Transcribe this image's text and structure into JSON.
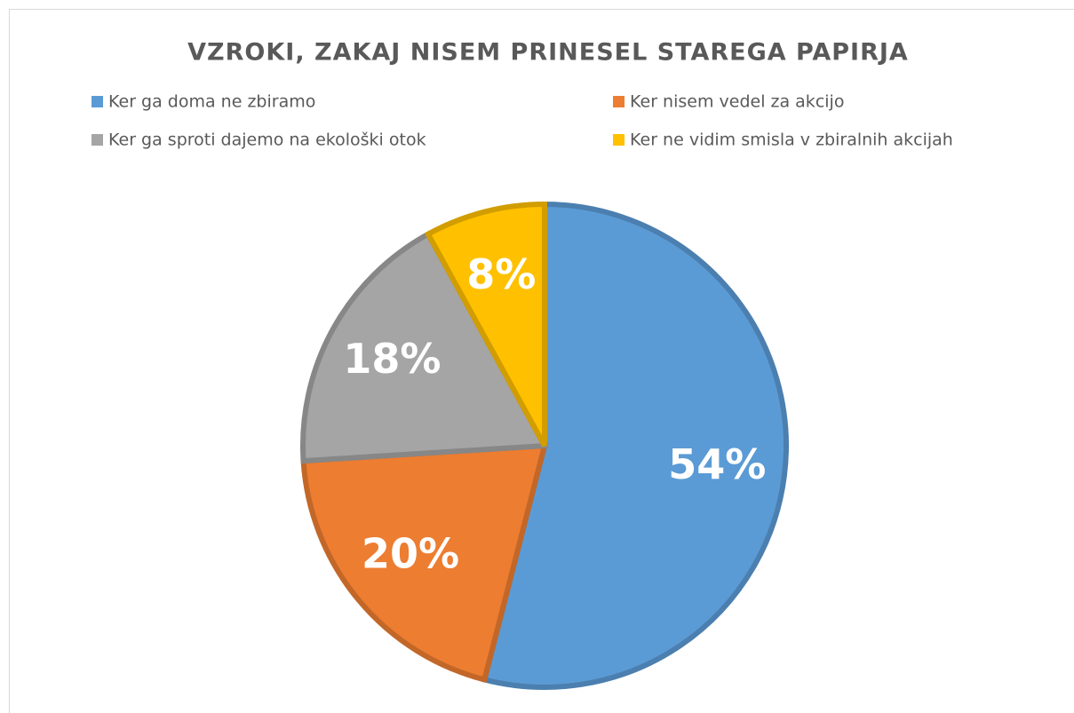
{
  "chart_data": {
    "type": "pie",
    "title": "VZROKI, ZAKAJ NISEM PRINESEL STAREGA PAPIRJA",
    "categories": [
      "Ker ga doma ne zbiramo",
      "Ker nisem vedel za akcijo",
      "Ker ga sproti dajemo na ekološki otok",
      "Ker ne vidim smisla v zbiralnih akcijah"
    ],
    "values": [
      54,
      20,
      18,
      8
    ],
    "value_labels": [
      "54%",
      "20%",
      "18%",
      "8%"
    ],
    "colors": [
      "#5b9bd5",
      "#ed7d31",
      "#a5a5a5",
      "#ffc000"
    ],
    "legend": "top"
  }
}
